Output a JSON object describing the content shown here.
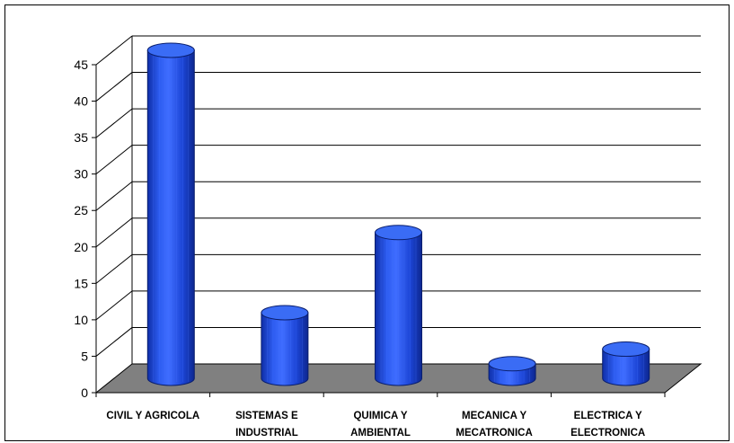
{
  "chart_data": {
    "type": "bar",
    "style": "3d-cylinder",
    "categories": [
      [
        "CIVIL Y AGRICOLA"
      ],
      [
        "SISTEMAS E",
        "INDUSTRIAL"
      ],
      [
        "QUIMICA Y",
        "AMBIENTAL"
      ],
      [
        "MECANICA Y",
        "MECATRONICA"
      ],
      [
        "ELECTRICA Y",
        "ELECTRONICA"
      ]
    ],
    "values": [
      45,
      9,
      20,
      2,
      4
    ],
    "ylim": [
      0,
      45
    ],
    "ytick_step": 5,
    "yticks": [
      "0",
      "5",
      "10",
      "15",
      "20",
      "25",
      "30",
      "35",
      "40",
      "45"
    ],
    "grid": true,
    "legend": "none",
    "colors": {
      "bar": "#1f4fe0",
      "bar_top": "#3a6cf5",
      "floor": "#808080",
      "grid": "#000000",
      "text": "#000000"
    }
  }
}
